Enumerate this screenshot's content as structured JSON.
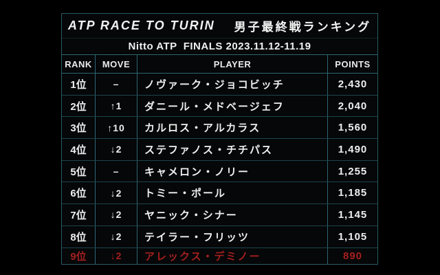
{
  "chart_data": {
    "type": "table",
    "title_en": "ATP RACE TO TURIN",
    "title_ja": "男子最終戦ランキング",
    "subtitle": "Nitto ATP  FINALS 2023.11.12-11.19",
    "columns": [
      "RANK",
      "MOVE",
      "PLAYER",
      "POINTS"
    ],
    "rows": [
      {
        "rank": "1位",
        "move": "–",
        "player": "ノヴァーク・ジョコビッチ",
        "points": "2,430",
        "highlight": false
      },
      {
        "rank": "2位",
        "move": "↑1",
        "player": "ダニール・メドベージェフ",
        "points": "2,040",
        "highlight": false
      },
      {
        "rank": "3位",
        "move": "↑10",
        "player": "カルロス・アルカラス",
        "points": "1,560",
        "highlight": false
      },
      {
        "rank": "4位",
        "move": "↓2",
        "player": "ステファノス・チチパス",
        "points": "1,490",
        "highlight": false
      },
      {
        "rank": "5位",
        "move": "–",
        "player": "キャメロン・ノリー",
        "points": "1,255",
        "highlight": false
      },
      {
        "rank": "6位",
        "move": "↓2",
        "player": "トミー・ポール",
        "points": "1,185",
        "highlight": false
      },
      {
        "rank": "7位",
        "move": "↓2",
        "player": "ヤニック・シナー",
        "points": "1,145",
        "highlight": false
      },
      {
        "rank": "8位",
        "move": "↓2",
        "player": "テイラー・フリッツ",
        "points": "1,105",
        "highlight": false
      },
      {
        "rank": "9位",
        "move": "↓2",
        "player": "アレックス・デミノー",
        "points": "890",
        "highlight": true
      }
    ],
    "colors": {
      "background": "#000000",
      "panel": "#050708",
      "border": "#2b5a66",
      "text": "#efefef",
      "highlight": "#a61f1f"
    }
  }
}
